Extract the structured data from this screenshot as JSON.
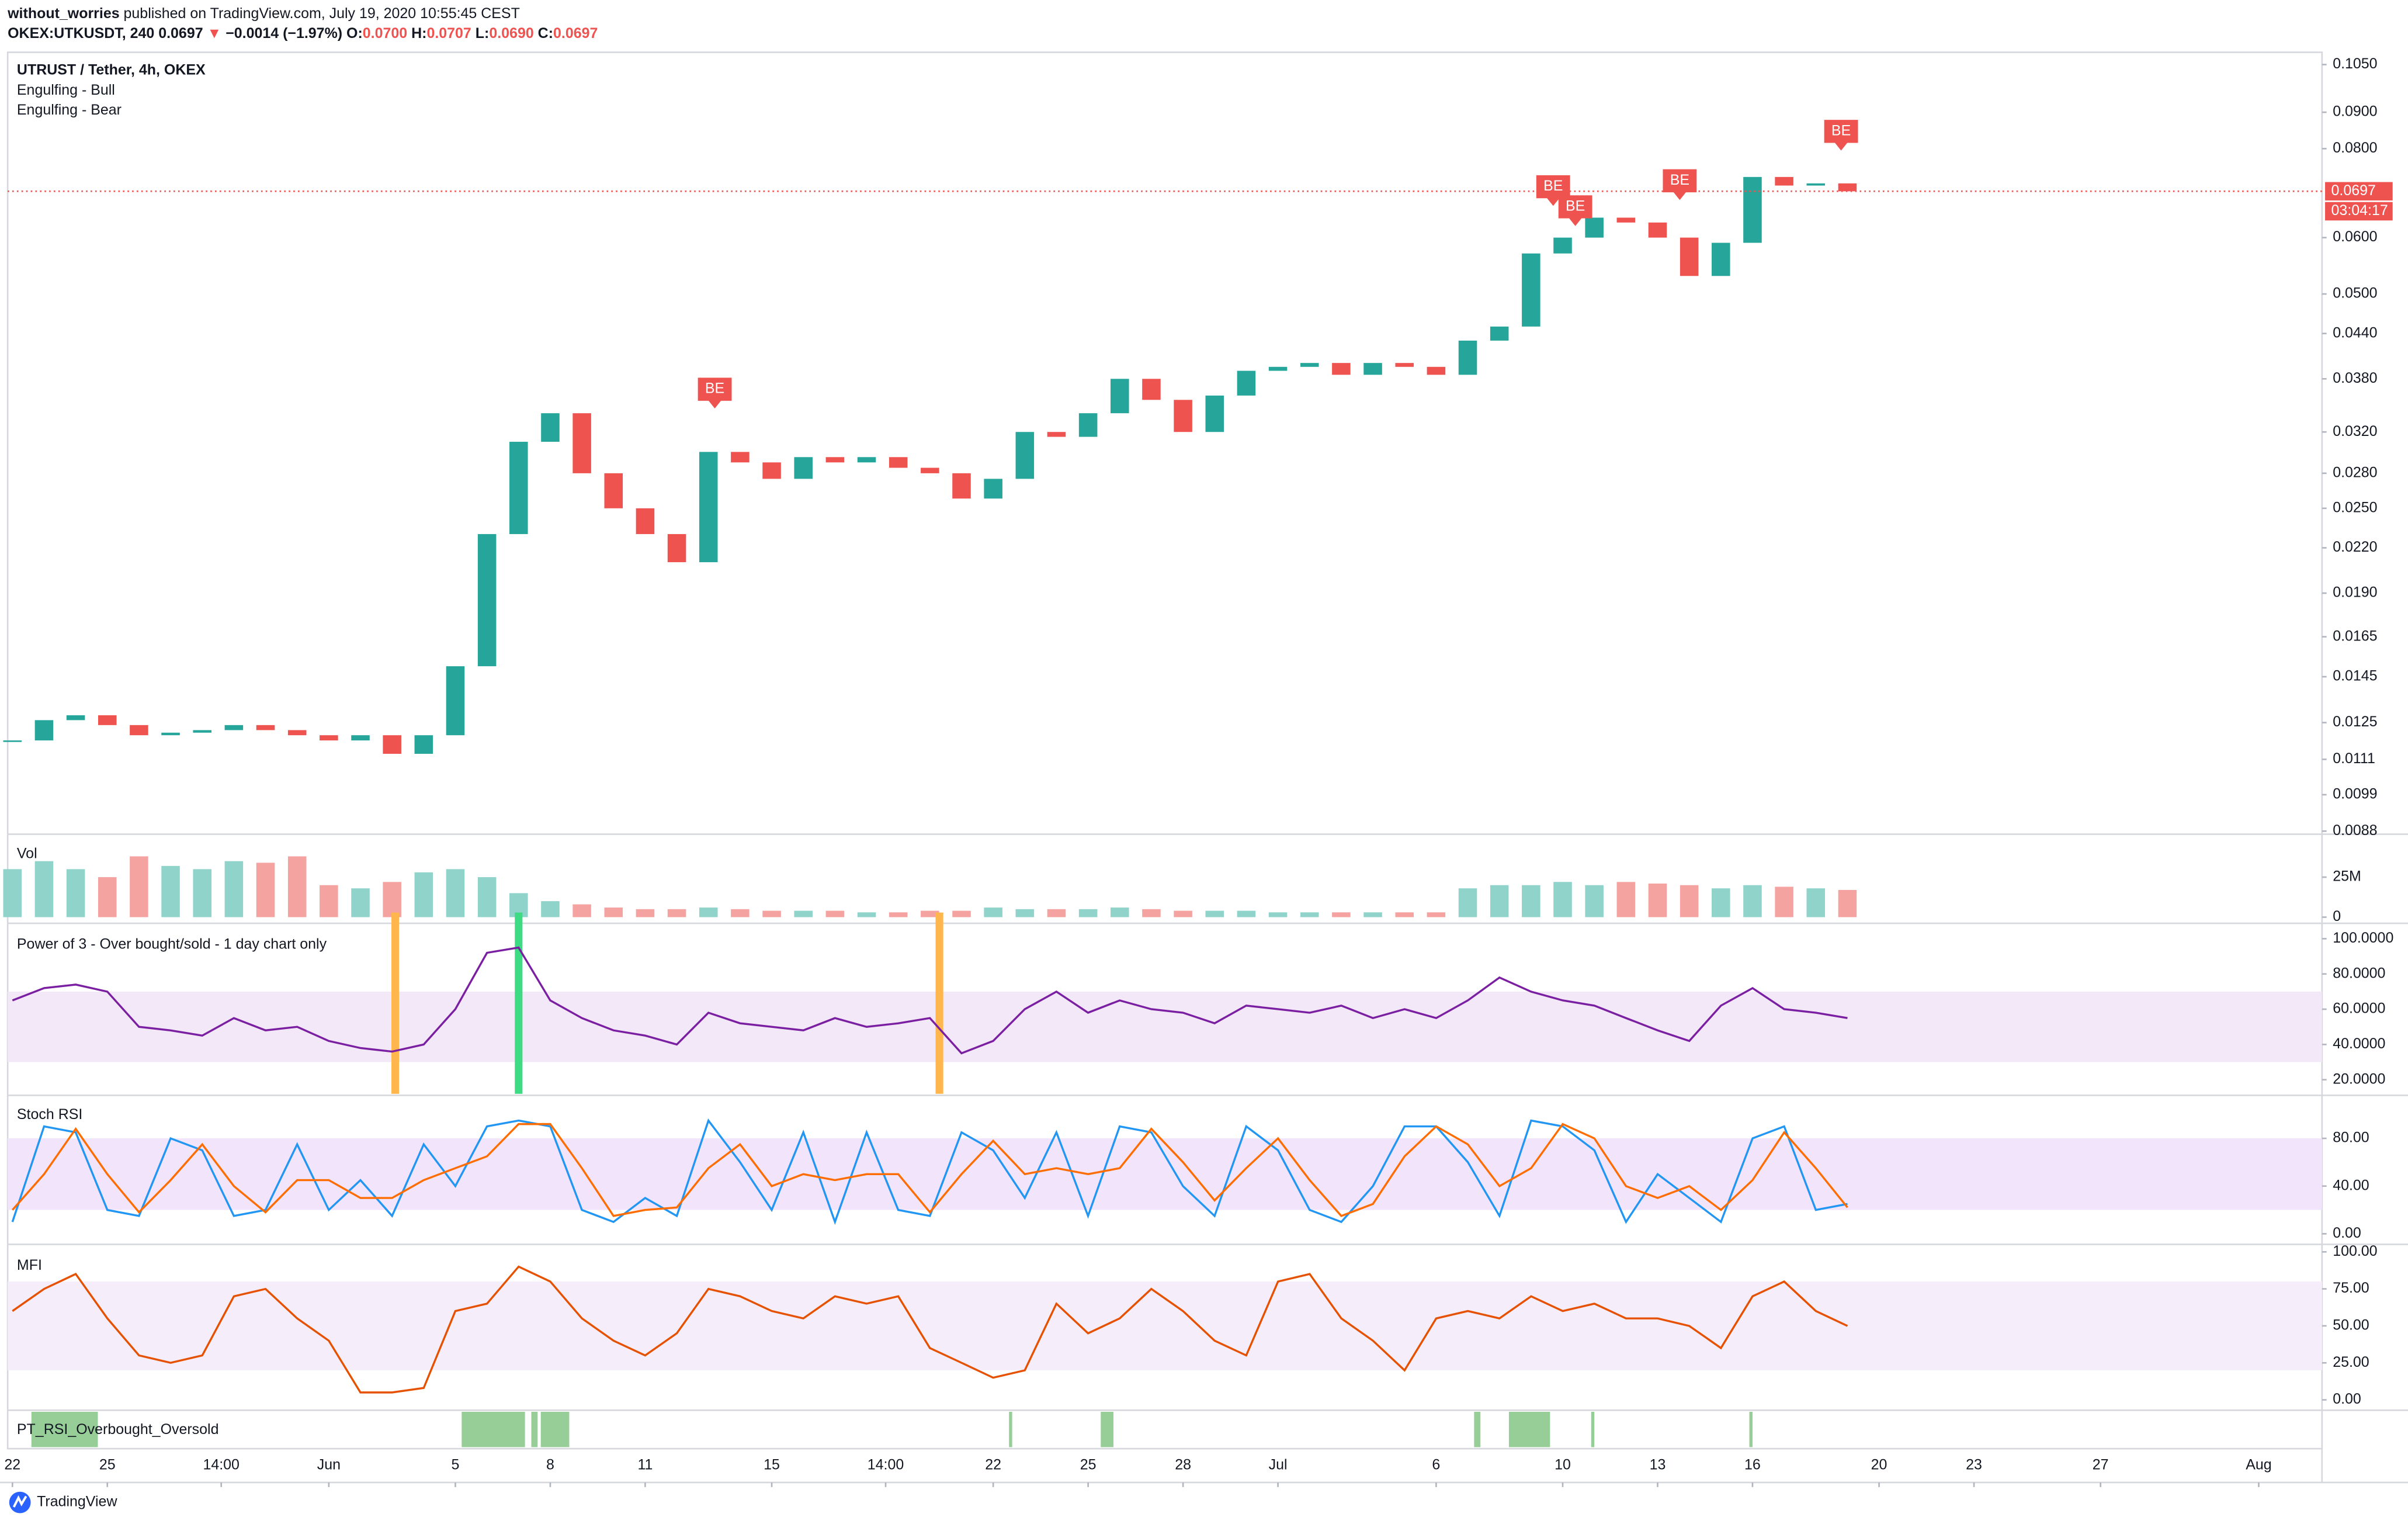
{
  "header": {
    "author": "without_worries",
    "published": "published on TradingView.com, July 19, 2020 10:55:45 CEST",
    "symbol": "OKEX:UTKUSDT, 240",
    "last": "0.0697",
    "arrow": "▼",
    "change": "−0.0014 (−1.97%)",
    "o_label": "O:",
    "o": "0.0700",
    "h_label": "H:",
    "h": "0.0707",
    "l_label": "L:",
    "l": "0.0690",
    "c_label": "C:",
    "c": "0.0697"
  },
  "footer": {
    "brand": "TradingView"
  },
  "chart_data": [
    {
      "type": "candlestick",
      "legend": [
        "UTRUST / Tether, 4h, OKEX",
        "Engulfing - Bull",
        "Engulfing - Bear"
      ],
      "log_scale": true,
      "up_color": "#26a69a",
      "down_color": "#ef5350",
      "x": [
        0,
        1,
        2,
        3,
        4,
        5,
        6,
        7,
        8,
        9,
        10,
        11,
        12,
        13,
        14,
        15,
        16,
        17,
        18,
        19,
        20,
        21,
        22,
        23,
        24,
        25,
        26,
        27,
        28,
        29,
        30,
        31,
        32,
        33,
        34,
        35,
        36,
        37,
        38,
        39,
        40,
        41,
        42,
        43,
        44,
        45,
        46,
        47,
        48,
        49,
        50,
        51,
        52,
        53,
        54,
        55,
        56,
        57,
        58
      ],
      "values": [
        0.0118,
        0.0126,
        0.0128,
        0.0124,
        0.012,
        0.0121,
        0.0122,
        0.0124,
        0.0122,
        0.012,
        0.0118,
        0.012,
        0.0113,
        0.012,
        0.015,
        0.023,
        0.031,
        0.034,
        0.028,
        0.025,
        0.023,
        0.021,
        0.03,
        0.029,
        0.0275,
        0.0295,
        0.029,
        0.0295,
        0.0285,
        0.028,
        0.0258,
        0.0275,
        0.032,
        0.0315,
        0.034,
        0.038,
        0.0355,
        0.032,
        0.036,
        0.039,
        0.0395,
        0.04,
        0.0385,
        0.04,
        0.0395,
        0.0385,
        0.043,
        0.045,
        0.057,
        0.06,
        0.064,
        0.063,
        0.06,
        0.053,
        0.059,
        0.073,
        0.071,
        0.0715,
        0.0697
      ],
      "xlim": [
        -0.15,
        73.0
      ],
      "xticks": [
        {
          "value": 0,
          "label": "22"
        },
        {
          "value": 3,
          "label": "25"
        },
        {
          "value": 6.6,
          "label": "14:00"
        },
        {
          "value": 10,
          "label": "Jun"
        },
        {
          "value": 14,
          "label": "5"
        },
        {
          "value": 17,
          "label": "8"
        },
        {
          "value": 20,
          "label": "11"
        },
        {
          "value": 24,
          "label": "15"
        },
        {
          "value": 27.6,
          "label": "14:00"
        },
        {
          "value": 31,
          "label": "22"
        },
        {
          "value": 34,
          "label": "25"
        },
        {
          "value": 37,
          "label": "28"
        },
        {
          "value": 40,
          "label": "Jul"
        },
        {
          "value": 45,
          "label": "6"
        },
        {
          "value": 49,
          "label": "10"
        },
        {
          "value": 52,
          "label": "13"
        },
        {
          "value": 55,
          "label": "16"
        },
        {
          "value": 59,
          "label": "20"
        },
        {
          "value": 62,
          "label": "23"
        },
        {
          "value": 66,
          "label": "27"
        },
        {
          "value": 71,
          "label": "Aug"
        }
      ],
      "ylim": [
        0.0088,
        0.105
      ],
      "yticks": [
        {
          "value": 0.105,
          "label": "0.1050"
        },
        {
          "value": 0.09,
          "label": "0.0900"
        },
        {
          "value": 0.08,
          "label": "0.0800"
        },
        {
          "value": 0.06,
          "label": "0.0600"
        },
        {
          "value": 0.05,
          "label": "0.0500"
        },
        {
          "value": 0.044,
          "label": "0.0440"
        },
        {
          "value": 0.038,
          "label": "0.0380"
        },
        {
          "value": 0.032,
          "label": "0.0320"
        },
        {
          "value": 0.028,
          "label": "0.0280"
        },
        {
          "value": 0.025,
          "label": "0.0250"
        },
        {
          "value": 0.022,
          "label": "0.0220"
        },
        {
          "value": 0.019,
          "label": "0.0190"
        },
        {
          "value": 0.0165,
          "label": "0.0165"
        },
        {
          "value": 0.0145,
          "label": "0.0145"
        },
        {
          "value": 0.0125,
          "label": "0.0125"
        },
        {
          "value": 0.0111,
          "label": "0.0111"
        },
        {
          "value": 0.0099,
          "label": "0.0099"
        },
        {
          "value": 0.0088,
          "label": "0.0088"
        }
      ],
      "last_price": {
        "value": 0.0697,
        "label": "0.0697"
      },
      "countdown": "03:04:17",
      "annotations": [
        {
          "x": 22.2,
          "y": 0.0347,
          "label": "BE"
        },
        {
          "x": 48.7,
          "y": 0.0668,
          "label": "BE"
        },
        {
          "x": 49.4,
          "y": 0.0626,
          "label": "BE"
        },
        {
          "x": 52.7,
          "y": 0.0681,
          "label": "BE"
        },
        {
          "x": 57.8,
          "y": 0.0799,
          "label": "BE"
        }
      ]
    },
    {
      "type": "bar",
      "title": "Vol",
      "up_color": "#8fd3cb",
      "down_color": "#f5a3a1",
      "values": [
        30,
        35,
        30,
        25,
        38,
        32,
        30,
        35,
        34,
        38,
        20,
        18,
        22,
        28,
        30,
        25,
        15,
        10,
        8,
        6,
        5,
        5,
        6,
        5,
        4,
        4,
        4,
        3,
        3,
        4,
        4,
        6,
        5,
        5,
        5,
        6,
        5,
        4,
        4,
        4,
        3,
        3,
        3,
        3,
        3,
        3,
        18,
        20,
        20,
        22,
        20,
        22,
        21,
        20,
        18,
        20,
        19,
        18,
        17
      ],
      "ylim": [
        0,
        48
      ],
      "yticks": [
        0,
        {
          "value": 25,
          "label": "25M"
        }
      ]
    },
    {
      "type": "line",
      "title": "Power of 3 - Over bought/sold - 1 day chart only",
      "band": [
        30,
        70
      ],
      "band_color": "#f3e8f7",
      "series": [
        {
          "color": "#7b1fa2",
          "values": [
            65,
            72,
            74,
            70,
            50,
            48,
            45,
            55,
            48,
            50,
            42,
            38,
            36,
            40,
            60,
            92,
            95,
            65,
            55,
            48,
            45,
            40,
            58,
            52,
            50,
            48,
            55,
            50,
            52,
            55,
            35,
            42,
            60,
            70,
            58,
            65,
            60,
            58,
            52,
            62,
            60,
            58,
            62,
            55,
            60,
            55,
            65,
            78,
            70,
            65,
            62,
            55,
            48,
            42,
            62,
            72,
            60,
            58,
            55
          ]
        }
      ],
      "highlights": [
        {
          "x": 12.1,
          "color": "#ffb74d"
        },
        {
          "x": 16,
          "color": "#3ddc84"
        },
        {
          "x": 29.3,
          "color": "#ffb74d"
        }
      ],
      "ylim": [
        12,
        107
      ],
      "yticks": [
        {
          "value": 100,
          "label": "100.0000"
        },
        {
          "value": 80,
          "label": "80.0000"
        },
        {
          "value": 60,
          "label": "60.0000"
        },
        {
          "value": 40,
          "label": "40.0000"
        },
        {
          "value": 20,
          "label": "20.0000"
        }
      ]
    },
    {
      "type": "line",
      "title": "Stoch RSI",
      "band": [
        20,
        80
      ],
      "band_color": "#f1e4fb",
      "series": [
        {
          "color": "#2196f3",
          "values": [
            10,
            90,
            85,
            20,
            15,
            80,
            70,
            15,
            20,
            75,
            20,
            45,
            15,
            75,
            40,
            90,
            95,
            90,
            20,
            10,
            30,
            15,
            95,
            60,
            20,
            85,
            10,
            85,
            20,
            15,
            85,
            70,
            30,
            85,
            15,
            90,
            85,
            40,
            15,
            90,
            70,
            20,
            10,
            40,
            90,
            90,
            60,
            15,
            95,
            90,
            70,
            10,
            50,
            30,
            10,
            80,
            90,
            20,
            25
          ]
        },
        {
          "color": "#ff6d00",
          "values": [
            20,
            50,
            88,
            50,
            18,
            45,
            75,
            40,
            18,
            45,
            45,
            30,
            30,
            45,
            55,
            65,
            92,
            92,
            55,
            15,
            20,
            22,
            55,
            75,
            40,
            50,
            45,
            50,
            50,
            18,
            50,
            78,
            50,
            55,
            50,
            55,
            88,
            60,
            28,
            55,
            80,
            45,
            15,
            25,
            65,
            90,
            75,
            40,
            55,
            92,
            80,
            40,
            30,
            40,
            20,
            45,
            85,
            55,
            22
          ]
        }
      ],
      "ylim": [
        -5,
        113.5
      ],
      "yticks": [
        {
          "value": 80,
          "label": "80.00"
        },
        {
          "value": 40,
          "label": "40.00"
        },
        {
          "value": 0,
          "label": "0.00"
        }
      ]
    },
    {
      "type": "line",
      "title": "MFI",
      "band": [
        20,
        80
      ],
      "band_color": "#f5eefa",
      "series": [
        {
          "color": "#e65100",
          "values": [
            60,
            75,
            85,
            55,
            30,
            25,
            30,
            70,
            75,
            55,
            40,
            5,
            5,
            8,
            60,
            65,
            90,
            80,
            55,
            40,
            30,
            45,
            75,
            70,
            60,
            55,
            70,
            65,
            70,
            35,
            25,
            15,
            20,
            65,
            45,
            55,
            75,
            60,
            40,
            30,
            80,
            85,
            55,
            40,
            20,
            55,
            60,
            55,
            70,
            60,
            65,
            55,
            55,
            50,
            35,
            70,
            80,
            60,
            50
          ]
        }
      ],
      "ylim": [
        -6,
        103
      ],
      "yticks": [
        {
          "value": 100,
          "label": "100.00"
        },
        {
          "value": 75,
          "label": "75.00"
        },
        {
          "value": 50,
          "label": "50.00"
        },
        {
          "value": 25,
          "label": "25.00"
        },
        {
          "value": 0,
          "label": "0.00"
        }
      ]
    },
    {
      "type": "span",
      "title": "PT_RSI_Overbought_Oversold",
      "color": "#97ce97",
      "spans": [
        [
          0.6,
          2.7
        ],
        [
          14.2,
          16.2
        ],
        [
          16.4,
          16.6
        ],
        [
          16.7,
          17.6
        ],
        [
          31.5,
          31.6
        ],
        [
          34.4,
          34.8
        ],
        [
          46.2,
          46.4
        ],
        [
          47.3,
          48.6
        ],
        [
          49.9,
          50.0
        ],
        [
          54.9,
          55.0
        ]
      ]
    }
  ]
}
